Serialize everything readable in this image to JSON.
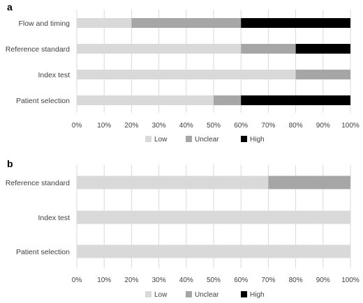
{
  "chart_data": [
    {
      "type": "bar",
      "orientation": "horizontal",
      "stacked": true,
      "panel_label": "a",
      "categories": [
        "Flow and timing",
        "Reference standard",
        "Index test",
        "Patient selection"
      ],
      "series": [
        {
          "name": "Low",
          "color": "#d9d9d9",
          "values": [
            20,
            60,
            80,
            50
          ]
        },
        {
          "name": "Unclear",
          "color": "#a6a6a6",
          "values": [
            40,
            20,
            20,
            10
          ]
        },
        {
          "name": "High",
          "color": "#000000",
          "values": [
            40,
            20,
            0,
            40
          ]
        }
      ],
      "xlim": [
        0,
        100
      ],
      "xticks": [
        "0%",
        "10%",
        "20%",
        "30%",
        "40%",
        "50%",
        "60%",
        "70%",
        "80%",
        "90%",
        "100%"
      ],
      "grid": true,
      "legend_position": "bottom"
    },
    {
      "type": "bar",
      "orientation": "horizontal",
      "stacked": true,
      "panel_label": "b",
      "categories": [
        "Reference standard",
        "Index test",
        "Patient selection"
      ],
      "series": [
        {
          "name": "Low",
          "color": "#d9d9d9",
          "values": [
            70,
            100,
            100
          ]
        },
        {
          "name": "Unclear",
          "color": "#a6a6a6",
          "values": [
            30,
            0,
            0
          ]
        },
        {
          "name": "High",
          "color": "#000000",
          "values": [
            0,
            0,
            0
          ]
        }
      ],
      "xlim": [
        0,
        100
      ],
      "xticks": [
        "0%",
        "10%",
        "20%",
        "30%",
        "40%",
        "50%",
        "60%",
        "70%",
        "80%",
        "90%",
        "100%"
      ],
      "grid": true,
      "legend_position": "bottom"
    }
  ]
}
